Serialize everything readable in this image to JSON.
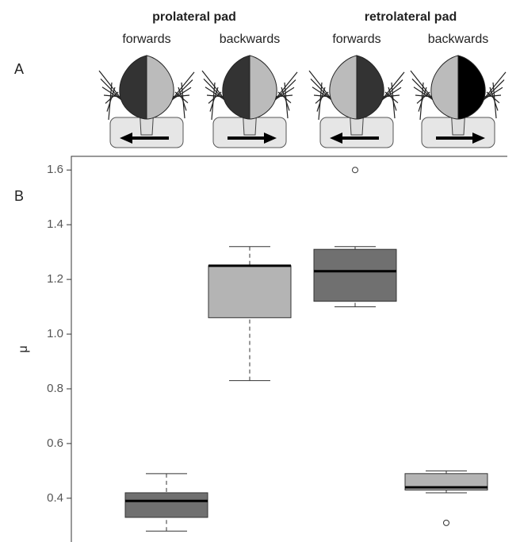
{
  "chart_data": {
    "type": "box",
    "panels": [
      "A",
      "B"
    ],
    "groups": [
      "prolateral pad",
      "retrolateral pad"
    ],
    "categories": [
      "forwards",
      "backwards",
      "forwards",
      "backwards"
    ],
    "ylabel": "μ",
    "ylim": [
      0.24,
      1.65
    ],
    "yticks": [
      0.4,
      0.6,
      0.8,
      {
        "value": 1,
        "label": "1.0"
      },
      1.2,
      1.4,
      1.6
    ],
    "boxes": [
      {
        "whislo": 0.28,
        "q1": 0.33,
        "med": 0.39,
        "q3": 0.42,
        "whishi": 0.49,
        "color": "#707070"
      },
      {
        "whislo": 0.83,
        "q1": 1.06,
        "med": 1.25,
        "q3": 1.25,
        "whishi": 1.32,
        "color": "#b4b4b4"
      },
      {
        "whislo": 1.1,
        "q1": 1.12,
        "med": 1.23,
        "q3": 1.31,
        "whishi": 1.32,
        "fliers": [
          1.6
        ],
        "color": "#707070"
      },
      {
        "whislo": 0.42,
        "q1": 0.43,
        "med": 0.44,
        "q3": 0.49,
        "whishi": 0.5,
        "fliers": [
          0.31
        ],
        "color": "#b4b4b4"
      }
    ]
  }
}
